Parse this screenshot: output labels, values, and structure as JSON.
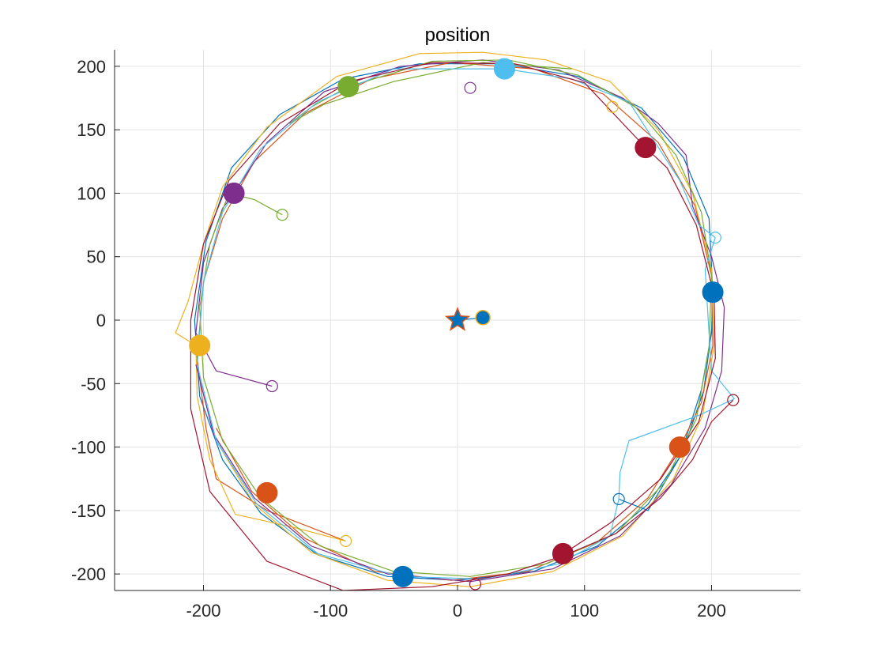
{
  "chart_data": {
    "type": "scatter",
    "title": "position",
    "xlabel": "",
    "ylabel": "",
    "xlim": [
      -270,
      270
    ],
    "ylim": [
      -213,
      213
    ],
    "grid": true,
    "xticks": [
      -200,
      -100,
      0,
      100,
      200
    ],
    "yticks": [
      -200,
      -150,
      -100,
      -50,
      0,
      50,
      100,
      150,
      200
    ],
    "xtick_labels": [
      "-200",
      "-100",
      "0",
      "100",
      "200"
    ],
    "ytick_labels": [
      "-200",
      "-150",
      "-100",
      "-50",
      "0",
      "50",
      "100",
      "150",
      "200"
    ],
    "center_marker": {
      "x": 0,
      "y": 0,
      "shape": "star",
      "fill": "#0072BD",
      "stroke": "#D95319"
    },
    "leader": {
      "x": 20,
      "y": 2,
      "color": "#0072BD"
    },
    "leader_link": [
      [
        0,
        0
      ],
      [
        20,
        2
      ]
    ],
    "series": [
      {
        "color": "#0072BD",
        "start": [
          127,
          -141
        ],
        "end": [
          201,
          22
        ],
        "path": [
          [
            127,
            -141
          ],
          [
            150,
            -150
          ],
          [
            175,
            -108
          ],
          [
            192,
            -55
          ],
          [
            200,
            -10
          ],
          [
            201,
            22
          ],
          [
            198,
            80
          ],
          [
            178,
            128
          ],
          [
            145,
            167
          ],
          [
            95,
            192
          ],
          [
            35,
            202
          ],
          [
            -30,
            202
          ],
          [
            -90,
            190
          ],
          [
            -140,
            162
          ],
          [
            -178,
            120
          ],
          [
            -198,
            62
          ],
          [
            -207,
            0
          ],
          [
            -203,
            -60
          ],
          [
            -185,
            -110
          ],
          [
            -155,
            -152
          ],
          [
            -110,
            -185
          ],
          [
            -55,
            -202
          ],
          [
            0,
            -205
          ],
          [
            60,
            -198
          ],
          [
            110,
            -178
          ],
          [
            150,
            -145
          ],
          [
            177,
            -105
          ],
          [
            194,
            -55
          ],
          [
            201,
            0
          ]
        ]
      },
      {
        "color": "#D95319",
        "start": [
          -88,
          -174
        ],
        "end": [
          175,
          -100
        ],
        "path": [
          [
            -88,
            -174
          ],
          [
            -150,
            -150
          ],
          [
            -190,
            -125
          ],
          [
            -198,
            -85
          ],
          [
            -205,
            -30
          ],
          [
            -200,
            30
          ],
          [
            -185,
            80
          ],
          [
            -160,
            125
          ],
          [
            -120,
            163
          ],
          [
            -68,
            190
          ],
          [
            -5,
            203
          ],
          [
            60,
            198
          ],
          [
            115,
            178
          ],
          [
            158,
            140
          ],
          [
            187,
            90
          ],
          [
            200,
            35
          ],
          [
            201,
            -20
          ],
          [
            192,
            -65
          ],
          [
            175,
            -100
          ],
          [
            150,
            -140
          ],
          [
            110,
            -175
          ],
          [
            55,
            -198
          ],
          [
            -5,
            -205
          ],
          [
            -65,
            -198
          ],
          [
            -120,
            -172
          ],
          [
            -162,
            -135
          ],
          [
            -190,
            -85
          ]
        ]
      },
      {
        "color": "#EDB120",
        "start": [
          -88,
          -174
        ],
        "end": [
          -203,
          -20
        ],
        "path": [
          [
            -88,
            -174
          ],
          [
            -130,
            -163
          ],
          [
            -175,
            -153
          ],
          [
            -195,
            -110
          ],
          [
            -205,
            -60
          ],
          [
            -206,
            -20
          ],
          [
            -222,
            -10
          ],
          [
            -212,
            15
          ],
          [
            -200,
            60
          ],
          [
            -185,
            105
          ],
          [
            -150,
            152
          ],
          [
            -95,
            192
          ],
          [
            -30,
            210
          ],
          [
            20,
            211
          ],
          [
            70,
            205
          ],
          [
            120,
            188
          ],
          [
            158,
            150
          ],
          [
            185,
            100
          ],
          [
            200,
            40
          ],
          [
            202,
            -20
          ],
          [
            193,
            -75
          ],
          [
            170,
            -125
          ],
          [
            130,
            -170
          ],
          [
            75,
            -198
          ],
          [
            10,
            -210
          ],
          [
            -55,
            -205
          ],
          [
            -115,
            -183
          ],
          [
            -160,
            -145
          ],
          [
            -190,
            -95
          ]
        ]
      },
      {
        "color": "#7E2F8E",
        "start": [
          -146,
          -52
        ],
        "end": [
          -176,
          100
        ],
        "path": [
          [
            -146,
            -52
          ],
          [
            -190,
            -40
          ],
          [
            -206,
            -10
          ],
          [
            -200,
            45
          ],
          [
            -185,
            88
          ],
          [
            -176,
            100
          ],
          [
            -150,
            140
          ],
          [
            -105,
            180
          ],
          [
            -45,
            200
          ],
          [
            20,
            205
          ],
          [
            80,
            197
          ],
          [
            130,
            175
          ],
          [
            158,
            155
          ],
          [
            180,
            130
          ],
          [
            185,
            90
          ],
          [
            200,
            50
          ],
          [
            210,
            10
          ],
          [
            208,
            -40
          ],
          [
            195,
            -85
          ],
          [
            168,
            -130
          ],
          [
            128,
            -170
          ],
          [
            75,
            -196
          ],
          [
            10,
            -206
          ],
          [
            -55,
            -200
          ],
          [
            -115,
            -178
          ],
          [
            -160,
            -140
          ],
          [
            -192,
            -90
          ],
          [
            -206,
            -35
          ]
        ]
      },
      {
        "color": "#77AC30",
        "start": [
          -138,
          83
        ],
        "end": [
          -86,
          184
        ],
        "path": [
          [
            -138,
            83
          ],
          [
            -160,
            95
          ],
          [
            -180,
            100
          ],
          [
            -195,
            60
          ],
          [
            -203,
            10
          ],
          [
            -200,
            -45
          ],
          [
            -185,
            -95
          ],
          [
            -155,
            -140
          ],
          [
            -108,
            -178
          ],
          [
            -50,
            -198
          ],
          [
            10,
            -202
          ],
          [
            70,
            -192
          ],
          [
            125,
            -168
          ],
          [
            163,
            -128
          ],
          [
            188,
            -78
          ],
          [
            198,
            -22
          ],
          [
            200,
            35
          ],
          [
            192,
            85
          ],
          [
            172,
            130
          ],
          [
            140,
            168
          ],
          [
            95,
            193
          ],
          [
            40,
            205
          ],
          [
            -20,
            204
          ],
          [
            -86,
            184
          ],
          [
            -115,
            168
          ],
          [
            -132,
            155
          ],
          [
            -105,
            170
          ],
          [
            -50,
            188
          ],
          [
            20,
            203
          ],
          [
            90,
            198
          ]
        ]
      },
      {
        "color": "#4DBEEE",
        "start": [
          203,
          65
        ],
        "end": [
          37,
          198
        ],
        "path": [
          [
            203,
            65
          ],
          [
            195,
            40
          ],
          [
            198,
            -10
          ],
          [
            200,
            -40
          ],
          [
            218,
            -62
          ],
          [
            190,
            -75
          ],
          [
            135,
            -95
          ],
          [
            128,
            -120
          ],
          [
            127,
            -141
          ],
          [
            120,
            -170
          ],
          [
            80,
            -192
          ],
          [
            20,
            -204
          ],
          [
            -45,
            -202
          ],
          [
            -110,
            -184
          ],
          [
            -158,
            -145
          ],
          [
            -190,
            -95
          ],
          [
            -205,
            -35
          ],
          [
            -200,
            30
          ],
          [
            -185,
            85
          ],
          [
            -155,
            135
          ],
          [
            -110,
            172
          ],
          [
            -50,
            198
          ],
          [
            37,
            198
          ],
          [
            90,
            190
          ],
          [
            135,
            172
          ],
          [
            175,
            110
          ],
          [
            190,
            75
          ],
          [
            203,
            65
          ]
        ]
      },
      {
        "color": "#A2142F",
        "start": [
          217,
          -63
        ],
        "end": [
          148,
          136
        ],
        "path": [
          [
            217,
            -63
          ],
          [
            200,
            -80
          ],
          [
            185,
            -110
          ],
          [
            160,
            -140
          ],
          [
            125,
            -168
          ],
          [
            85,
            -185
          ],
          [
            40,
            -200
          ],
          [
            -20,
            -210
          ],
          [
            -90,
            -213
          ],
          [
            -150,
            -190
          ],
          [
            -195,
            -135
          ],
          [
            -210,
            -70
          ],
          [
            -210,
            0
          ],
          [
            -200,
            60
          ],
          [
            -180,
            110
          ],
          [
            -140,
            155
          ],
          [
            -85,
            188
          ],
          [
            -20,
            203
          ],
          [
            45,
            202
          ],
          [
            100,
            187
          ],
          [
            148,
            136
          ],
          [
            165,
            120
          ],
          [
            188,
            75
          ],
          [
            202,
            20
          ],
          [
            203,
            -30
          ],
          [
            190,
            -80
          ],
          [
            160,
            -125
          ],
          [
            120,
            -160
          ],
          [
            82,
            -185
          ]
        ]
      }
    ],
    "markers": [
      {
        "x": 201,
        "y": 22,
        "color": "#0072BD"
      },
      {
        "x": 175,
        "y": -100,
        "color": "#D95319"
      },
      {
        "x": -150,
        "y": -136,
        "color": "#D95319"
      },
      {
        "x": -203,
        "y": -20,
        "color": "#EDB120"
      },
      {
        "x": -176,
        "y": 100,
        "color": "#7E2F8E"
      },
      {
        "x": -86,
        "y": 184,
        "color": "#77AC30"
      },
      {
        "x": 37,
        "y": 198,
        "color": "#4DBEEE"
      },
      {
        "x": 148,
        "y": 136,
        "color": "#A2142F"
      },
      {
        "x": 83,
        "y": -184,
        "color": "#A2142F"
      },
      {
        "x": -43,
        "y": -202,
        "color": "#0072BD"
      }
    ],
    "start_markers": [
      {
        "x": 127,
        "y": -141,
        "color": "#0072BD"
      },
      {
        "x": -88,
        "y": -174,
        "color": "#EDB120"
      },
      {
        "x": -146,
        "y": -52,
        "color": "#7E2F8E"
      },
      {
        "x": -138,
        "y": 83,
        "color": "#77AC30"
      },
      {
        "x": 203,
        "y": 65,
        "color": "#4DBEEE"
      },
      {
        "x": 217,
        "y": -63,
        "color": "#A2142F"
      },
      {
        "x": 10,
        "y": 183,
        "color": "#7E2F8E"
      },
      {
        "x": 122,
        "y": 168,
        "color": "#EDB120"
      },
      {
        "x": 14,
        "y": -208,
        "color": "#A2142F"
      }
    ]
  }
}
